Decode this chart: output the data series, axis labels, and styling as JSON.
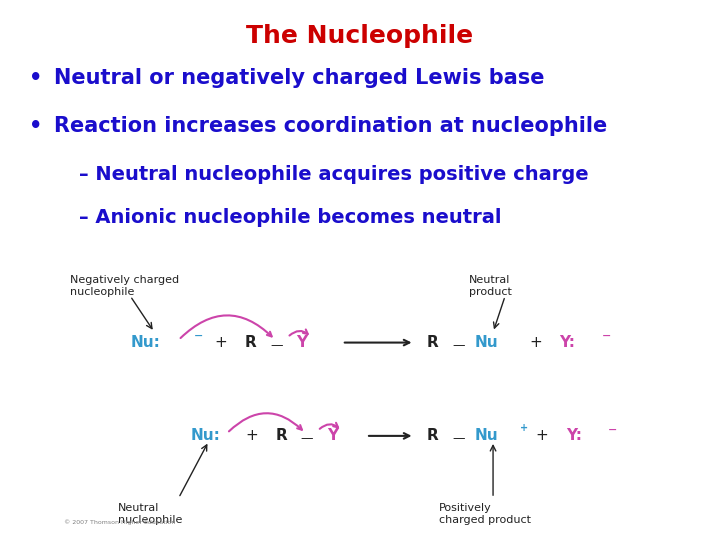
{
  "title": "The Nucleophile",
  "title_color": "#cc0000",
  "title_fontsize": 18,
  "bullet_color": "#1a0dcc",
  "bullet_fontsize": 15,
  "sub_bullet_color": "#1a0dcc",
  "sub_bullet_fontsize": 14,
  "background_color": "#ffffff",
  "bullets": [
    "Neutral or negatively charged Lewis base",
    "Reaction increases coordination at nucleophile"
  ],
  "sub_bullets": [
    "– Neutral nucleophile acquires positive charge",
    "– Anionic nucleophile becomes neutral"
  ],
  "nu_color": "#3399cc",
  "y_color": "#cc44aa",
  "text_color": "#222222",
  "arrow_color": "#cc44aa",
  "label_fontsize": 8,
  "chem_fontsize": 11
}
